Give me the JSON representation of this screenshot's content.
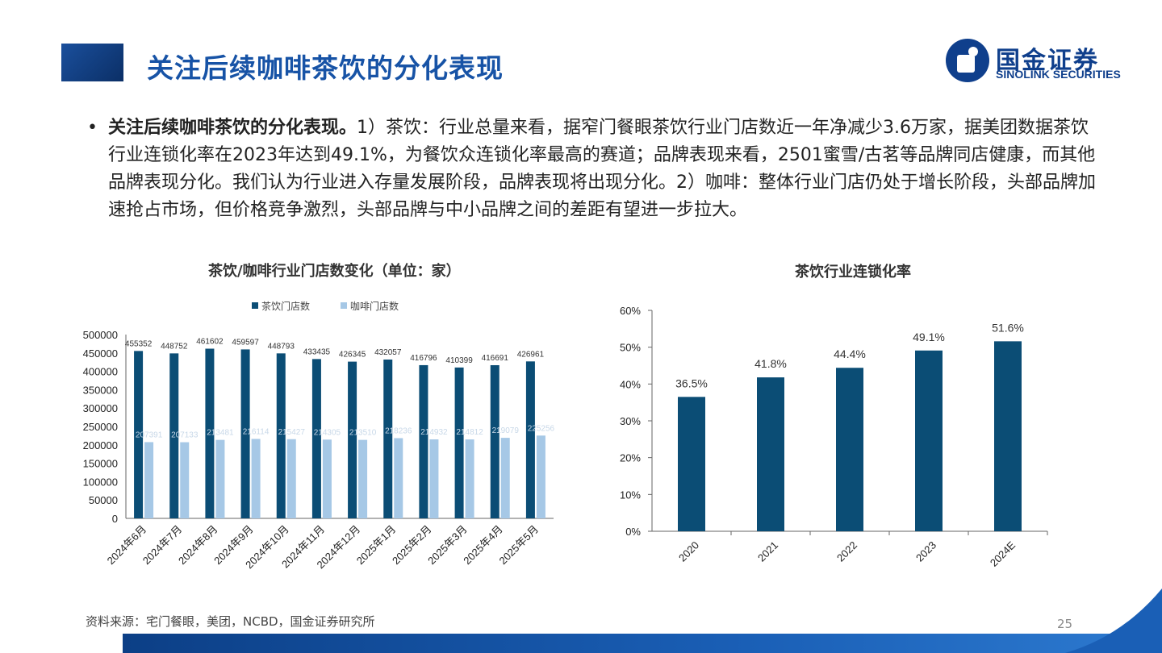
{
  "page": {
    "title": "关注后续咖啡茶饮的分化表现",
    "logo_cn": "国金证券",
    "logo_en": "SINOLINK SECURITIES",
    "bullet_bold": "关注后续咖啡茶饮的分化表现。",
    "bullet_text": "1）茶饮：行业总量来看，据窄门餐眼茶饮行业门店数近一年净减少3.6万家，据美团数据茶饮行业连锁化率在2023年达到49.1%，为餐饮众连锁化率最高的赛道；品牌表现来看，2501蜜雪/古茗等品牌同店健康，而其他品牌表现分化。我们认为行业进入存量发展阶段，品牌表现将出现分化。2）咖啡：整体行业门店仍处于增长阶段，头部品牌加速抢占市场，但价格竞争激烈，头部品牌与中小品牌之间的差距有望进一步拉大。",
    "source": "资料来源：宅门餐眼，美团，NCBD，国金证券研究所",
    "page_number": "25"
  },
  "colors": {
    "tea": "#0b4d75",
    "coffee": "#a6c8e6",
    "chain": "#0b4d75",
    "title": "#1753a6"
  },
  "chart_data": [
    {
      "type": "bar",
      "title": "茶饮/咖啡行业门店数变化（单位：家）",
      "categories": [
        "2024年6月",
        "2024年7月",
        "2024年8月",
        "2024年9月",
        "2024年10月",
        "2024年11月",
        "2024年12月",
        "2025年1月",
        "2025年2月",
        "2025年3月",
        "2025年4月",
        "2025年5月"
      ],
      "series": [
        {
          "name": "茶饮门店数",
          "values": [
            455352,
            448752,
            461602,
            459597,
            448793,
            433435,
            426345,
            432057,
            416796,
            410399,
            416691,
            426961
          ]
        },
        {
          "name": "咖啡门店数",
          "values": [
            207391,
            207133,
            213481,
            216114,
            215427,
            214305,
            213510,
            218236,
            214932,
            214812,
            219079,
            225256
          ]
        }
      ],
      "ylim": [
        0,
        500000
      ],
      "yticks": [
        "0",
        "50000",
        "100000",
        "150000",
        "200000",
        "250000",
        "300000",
        "350000",
        "400000",
        "450000",
        "500000"
      ],
      "legend": "top"
    },
    {
      "type": "bar",
      "title": "茶饮行业连锁化率",
      "categories": [
        "2020",
        "2021",
        "2022",
        "2023",
        "2024E"
      ],
      "values": [
        36.5,
        41.8,
        44.4,
        49.1,
        51.6
      ],
      "labels": [
        "36.5%",
        "41.8%",
        "44.4%",
        "49.1%",
        "51.6%"
      ],
      "ylim": [
        0,
        60
      ],
      "yticks": [
        "0%",
        "10%",
        "20%",
        "30%",
        "40%",
        "50%",
        "60%"
      ]
    }
  ]
}
